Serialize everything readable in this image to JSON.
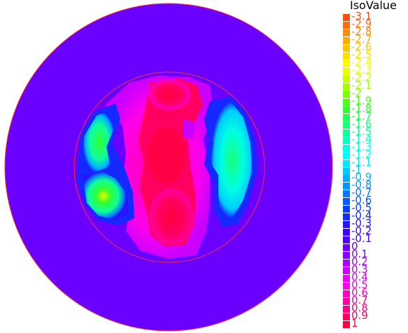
{
  "chart_data": {
    "type": "heatmap",
    "title": "",
    "legend_title": "IsoValue",
    "legend_position": "right",
    "levels": [
      {
        "label": "-3.1",
        "value": -3.1,
        "color": "#ff4a10"
      },
      {
        "label": "-2.9",
        "value": -2.9,
        "color": "#ff6a0a"
      },
      {
        "label": "-2.8",
        "value": -2.8,
        "color": "#ff8a08"
      },
      {
        "label": "-2.7",
        "value": -2.7,
        "color": "#ffa806"
      },
      {
        "label": "-2.6",
        "value": -2.6,
        "color": "#ffc404"
      },
      {
        "label": "-2.5",
        "value": -2.5,
        "color": "#ffde02"
      },
      {
        "label": "-2.4",
        "value": -2.4,
        "color": "#fff800"
      },
      {
        "label": "-2.3",
        "value": -2.3,
        "color": "#e8ff00"
      },
      {
        "label": "-2.2",
        "value": -2.2,
        "color": "#c6ff00"
      },
      {
        "label": "-2.1",
        "value": -2.1,
        "color": "#a4ff00"
      },
      {
        "label": "-2",
        "value": -2.0,
        "color": "#7cff00"
      },
      {
        "label": "-1.9",
        "value": -1.9,
        "color": "#50ff10"
      },
      {
        "label": "-1.8",
        "value": -1.8,
        "color": "#30ff30"
      },
      {
        "label": "-1.7",
        "value": -1.7,
        "color": "#20ff50"
      },
      {
        "label": "-1.6",
        "value": -1.6,
        "color": "#18ff78"
      },
      {
        "label": "-1.5",
        "value": -1.5,
        "color": "#10ff9c"
      },
      {
        "label": "-1.4",
        "value": -1.4,
        "color": "#08ffc0"
      },
      {
        "label": "-1.3",
        "value": -1.3,
        "color": "#00ffe0"
      },
      {
        "label": "-1.2",
        "value": -1.2,
        "color": "#00ffff"
      },
      {
        "label": "-1.1",
        "value": -1.1,
        "color": "#00e8ff"
      },
      {
        "label": "-1",
        "value": -1.0,
        "color": "#00ccff"
      },
      {
        "label": "-0.9",
        "value": -0.9,
        "color": "#00b0ff"
      },
      {
        "label": "-0.8",
        "value": -0.8,
        "color": "#0094ff"
      },
      {
        "label": "-0.7",
        "value": -0.7,
        "color": "#0078ff"
      },
      {
        "label": "-0.6",
        "value": -0.6,
        "color": "#005cff"
      },
      {
        "label": "-0.5",
        "value": -0.5,
        "color": "#0040ff"
      },
      {
        "label": "-0.4",
        "value": -0.4,
        "color": "#1428ff"
      },
      {
        "label": "-0.3",
        "value": -0.3,
        "color": "#2814ff"
      },
      {
        "label": "-0.2",
        "value": -0.2,
        "color": "#3a06ff"
      },
      {
        "label": "-0.1",
        "value": -0.1,
        "color": "#5000ff"
      },
      {
        "label": "0",
        "value": 0.0,
        "color": "#6a00ff"
      },
      {
        "label": "0.1",
        "value": 0.1,
        "color": "#8a00ff"
      },
      {
        "label": "0.2",
        "value": 0.2,
        "color": "#aa00ff"
      },
      {
        "label": "0.3",
        "value": 0.3,
        "color": "#ca00ff"
      },
      {
        "label": "0.4",
        "value": 0.4,
        "color": "#ea00ff"
      },
      {
        "label": "0.5",
        "value": 0.5,
        "color": "#ff00e8"
      },
      {
        "label": "0.6",
        "value": 0.6,
        "color": "#ff00c4"
      },
      {
        "label": "0.7",
        "value": 0.7,
        "color": "#ff00a0"
      },
      {
        "label": "0.8",
        "value": 0.8,
        "color": "#ff0080"
      },
      {
        "label": "0.9",
        "value": 0.9,
        "color": "#ff0060"
      },
      {
        "label": "1",
        "value": 1.0,
        "color": "#ff0040"
      }
    ]
  }
}
